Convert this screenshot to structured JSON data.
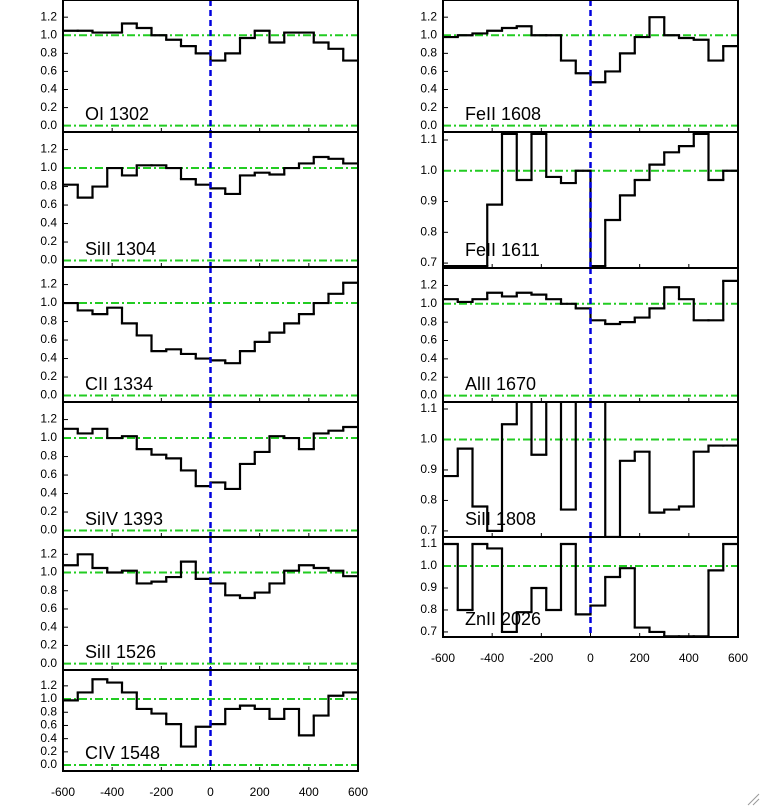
{
  "chart_data": [
    {
      "type": "step",
      "label": "OI 1302",
      "xlim": [
        -600,
        600
      ],
      "xticks": [
        -600,
        -400,
        -200,
        0,
        200,
        400,
        600
      ],
      "ylim": [
        -0.07,
        1.39
      ],
      "yticks": [
        {
          "value": 0,
          "label": "0.0"
        },
        0.2,
        0.4,
        0.6,
        0.8,
        {
          "value": 1,
          "label": "1.0"
        },
        1.2
      ],
      "reference_lines": [
        0,
        1
      ],
      "vline": 0,
      "x": [
        -570,
        -510,
        -450,
        -390,
        -330,
        -270,
        -210,
        -150,
        -90,
        -30,
        30,
        90,
        150,
        210,
        270,
        330,
        390,
        450,
        510,
        570
      ],
      "values": [
        1.05,
        1.05,
        1.03,
        1.03,
        1.13,
        1.08,
        1.0,
        0.95,
        0.88,
        0.8,
        0.72,
        0.8,
        0.97,
        1.05,
        0.92,
        1.03,
        1.03,
        0.92,
        0.85,
        0.72
      ]
    },
    {
      "type": "step",
      "label": "SiII 1304",
      "xlim": [
        -600,
        600
      ],
      "xticks": [
        -600,
        -400,
        -200,
        0,
        200,
        400,
        600
      ],
      "ylim": [
        -0.07,
        1.39
      ],
      "yticks": [
        {
          "value": 0,
          "label": "0.0"
        },
        0.2,
        0.4,
        0.6,
        0.8,
        {
          "value": 1,
          "label": "1.0"
        },
        1.2
      ],
      "reference_lines": [
        0,
        1
      ],
      "vline": 0,
      "x": [
        -570,
        -510,
        -450,
        -390,
        -330,
        -270,
        -210,
        -150,
        -90,
        -30,
        30,
        90,
        150,
        210,
        270,
        330,
        390,
        450,
        510,
        570
      ],
      "values": [
        0.82,
        0.68,
        0.8,
        1.0,
        0.92,
        1.03,
        1.03,
        1.0,
        0.88,
        0.82,
        0.78,
        0.72,
        0.92,
        0.95,
        0.93,
        1.0,
        1.05,
        1.12,
        1.1,
        1.05
      ]
    },
    {
      "type": "step",
      "label": "CII 1334",
      "xlim": [
        -600,
        600
      ],
      "xticks": [
        -600,
        -400,
        -200,
        0,
        200,
        400,
        600
      ],
      "ylim": [
        -0.07,
        1.39
      ],
      "yticks": [
        {
          "value": 0,
          "label": "0.0"
        },
        0.2,
        0.4,
        0.6,
        0.8,
        {
          "value": 1,
          "label": "1.0"
        },
        1.2
      ],
      "reference_lines": [
        0,
        1
      ],
      "vline": 0,
      "x": [
        -570,
        -510,
        -450,
        -390,
        -330,
        -270,
        -210,
        -150,
        -90,
        -30,
        30,
        90,
        150,
        210,
        270,
        330,
        390,
        450,
        510,
        570
      ],
      "values": [
        1.0,
        0.92,
        0.88,
        0.95,
        0.78,
        0.65,
        0.48,
        0.5,
        0.45,
        0.4,
        0.38,
        0.35,
        0.48,
        0.58,
        0.68,
        0.78,
        0.88,
        1.0,
        1.1,
        1.22
      ]
    },
    {
      "type": "step",
      "label": "SiIV 1393",
      "xlim": [
        -600,
        600
      ],
      "xticks": [
        -600,
        -400,
        -200,
        0,
        200,
        400,
        600
      ],
      "ylim": [
        -0.07,
        1.39
      ],
      "yticks": [
        {
          "value": 0,
          "label": "0.0"
        },
        0.2,
        0.4,
        0.6,
        0.8,
        {
          "value": 1,
          "label": "1.0"
        },
        1.2
      ],
      "reference_lines": [
        0,
        1
      ],
      "vline": 0,
      "x": [
        -570,
        -510,
        -450,
        -390,
        -330,
        -270,
        -210,
        -150,
        -90,
        -30,
        30,
        90,
        150,
        210,
        270,
        330,
        390,
        450,
        510,
        570
      ],
      "values": [
        1.1,
        1.05,
        1.1,
        1.0,
        1.02,
        0.88,
        0.82,
        0.78,
        0.65,
        0.48,
        0.52,
        0.45,
        0.72,
        0.85,
        1.02,
        1.0,
        0.88,
        1.05,
        1.08,
        1.12
      ]
    },
    {
      "type": "step",
      "label": "SiII 1526",
      "xlim": [
        -600,
        600
      ],
      "xticks": [
        -600,
        -400,
        -200,
        0,
        200,
        400,
        600
      ],
      "ylim": [
        -0.07,
        1.39
      ],
      "yticks": [
        {
          "value": 0,
          "label": "0.0"
        },
        0.2,
        0.4,
        0.6,
        0.8,
        {
          "value": 1,
          "label": "1.0"
        },
        1.2
      ],
      "reference_lines": [
        0,
        1
      ],
      "vline": 0,
      "x": [
        -570,
        -510,
        -450,
        -390,
        -330,
        -270,
        -210,
        -150,
        -90,
        -30,
        30,
        90,
        150,
        210,
        270,
        330,
        390,
        450,
        510,
        570
      ],
      "values": [
        1.08,
        1.2,
        1.05,
        1.0,
        1.02,
        0.88,
        0.9,
        0.95,
        1.12,
        0.93,
        0.88,
        0.75,
        0.72,
        0.78,
        0.88,
        1.02,
        1.08,
        1.05,
        1.02,
        0.96
      ]
    },
    {
      "type": "step",
      "label": "CIV 1548",
      "xlim": [
        -600,
        600
      ],
      "xticks": [
        -600,
        -400,
        -200,
        0,
        200,
        400,
        600
      ],
      "ylim": [
        -0.09,
        1.44
      ],
      "yticks": [
        {
          "value": 0,
          "label": "0.0"
        },
        0.2,
        0.4,
        0.6,
        0.8,
        {
          "value": 1,
          "label": "1.0"
        },
        1.2
      ],
      "reference_lines": [
        0,
        1
      ],
      "vline": 0,
      "x": [
        -570,
        -510,
        -450,
        -390,
        -330,
        -270,
        -210,
        -150,
        -90,
        -30,
        30,
        90,
        150,
        210,
        270,
        330,
        390,
        450,
        510,
        570
      ],
      "values": [
        0.98,
        1.1,
        1.3,
        1.25,
        1.1,
        0.85,
        0.78,
        0.62,
        0.28,
        0.58,
        0.62,
        0.85,
        0.9,
        0.85,
        0.7,
        0.85,
        0.45,
        0.75,
        1.05,
        1.1
      ]
    },
    {
      "type": "step",
      "label": "FeII 1608",
      "xlim": [
        -600,
        600
      ],
      "xticks": [
        -600,
        -400,
        -200,
        0,
        200,
        400,
        600
      ],
      "ylim": [
        -0.07,
        1.39
      ],
      "yticks": [
        {
          "value": 0,
          "label": "0.0"
        },
        0.2,
        0.4,
        0.6,
        0.8,
        {
          "value": 1,
          "label": "1.0"
        },
        1.2
      ],
      "reference_lines": [
        0,
        1
      ],
      "vline": 0,
      "x": [
        -570,
        -510,
        -450,
        -390,
        -330,
        -270,
        -210,
        -150,
        -90,
        -30,
        30,
        90,
        150,
        210,
        270,
        330,
        390,
        450,
        510,
        570
      ],
      "values": [
        0.98,
        1.0,
        1.02,
        1.05,
        1.08,
        1.1,
        1.0,
        1.0,
        0.72,
        0.58,
        0.48,
        0.6,
        0.8,
        0.98,
        1.2,
        1.0,
        0.97,
        0.95,
        0.72,
        0.88
      ]
    },
    {
      "type": "step",
      "label": "FeII 1611",
      "xlim": [
        -600,
        600
      ],
      "xticks": [
        -600,
        -400,
        -200,
        0,
        200,
        400,
        600
      ],
      "ylim": [
        0.684,
        1.126
      ],
      "yticks": [
        0.7,
        0.8,
        0.9,
        {
          "value": 1,
          "label": "1.0"
        },
        1.1
      ],
      "reference_lines": [
        1
      ],
      "vline": 0,
      "x": [
        -570,
        -510,
        -450,
        -390,
        -330,
        -270,
        -210,
        -150,
        -90,
        -30,
        30,
        90,
        150,
        210,
        270,
        330,
        390,
        450,
        510,
        570
      ],
      "values": [
        0.69,
        0.69,
        0.69,
        0.89,
        1.12,
        0.97,
        1.12,
        0.98,
        0.96,
        1.0,
        0.69,
        0.84,
        0.92,
        0.97,
        1.02,
        1.06,
        1.08,
        1.12,
        0.97,
        1.0
      ]
    },
    {
      "type": "step",
      "label": "AlII 1670",
      "xlim": [
        -600,
        600
      ],
      "xticks": [
        -600,
        -400,
        -200,
        0,
        200,
        400,
        600
      ],
      "ylim": [
        -0.07,
        1.39
      ],
      "yticks": [
        {
          "value": 0,
          "label": "0.0"
        },
        0.2,
        0.4,
        0.6,
        0.8,
        {
          "value": 1,
          "label": "1.0"
        },
        1.2
      ],
      "reference_lines": [
        0,
        1
      ],
      "vline": 0,
      "x": [
        -570,
        -510,
        -450,
        -390,
        -330,
        -270,
        -210,
        -150,
        -90,
        -30,
        30,
        90,
        150,
        210,
        270,
        330,
        390,
        450,
        510,
        570
      ],
      "values": [
        1.05,
        1.02,
        1.05,
        1.12,
        1.08,
        1.12,
        1.1,
        1.05,
        1.0,
        0.95,
        0.82,
        0.78,
        0.8,
        0.85,
        0.95,
        1.18,
        1.05,
        0.82,
        0.82,
        1.25
      ]
    },
    {
      "type": "step",
      "label": "SiII 1808",
      "xlim": [
        -600,
        600
      ],
      "xticks": [
        -600,
        -400,
        -200,
        0,
        200,
        400,
        600
      ],
      "ylim": [
        0.68,
        1.123
      ],
      "yticks": [
        0.7,
        0.8,
        0.9,
        {
          "value": 1,
          "label": "1.0"
        },
        1.1
      ],
      "reference_lines": [
        1
      ],
      "vline": 0,
      "x": [
        -570,
        -510,
        -450,
        -390,
        -330,
        -270,
        -210,
        -150,
        -90,
        -30,
        30,
        90,
        150,
        210,
        270,
        330,
        390,
        450,
        510,
        570
      ],
      "values": [
        0.88,
        0.97,
        0.78,
        0.7,
        1.05,
        1.14,
        0.95,
        1.14,
        0.77,
        1.14,
        1.14,
        0.68,
        0.93,
        0.96,
        0.76,
        0.77,
        0.78,
        0.96,
        0.98,
        0.98
      ]
    },
    {
      "type": "step",
      "label": "ZnII 2026",
      "xlim": [
        -600,
        600
      ],
      "xticks": [
        -600,
        -400,
        -200,
        0,
        200,
        400,
        600
      ],
      "ylim": [
        0.677,
        1.132
      ],
      "yticks": [
        0.7,
        0.8,
        0.9,
        {
          "value": 1,
          "label": "1.0"
        },
        1.1
      ],
      "reference_lines": [
        1
      ],
      "vline": 0,
      "x": [
        -570,
        -510,
        -450,
        -390,
        -330,
        -270,
        -210,
        -150,
        -90,
        -30,
        30,
        90,
        150,
        210,
        270,
        330,
        390,
        450,
        510,
        570
      ],
      "values": [
        1.1,
        0.8,
        1.1,
        1.08,
        0.7,
        0.79,
        0.9,
        0.8,
        1.1,
        0.78,
        0.82,
        0.95,
        0.99,
        0.72,
        0.7,
        0.68,
        0.68,
        0.68,
        0.98,
        1.1
      ]
    }
  ]
}
